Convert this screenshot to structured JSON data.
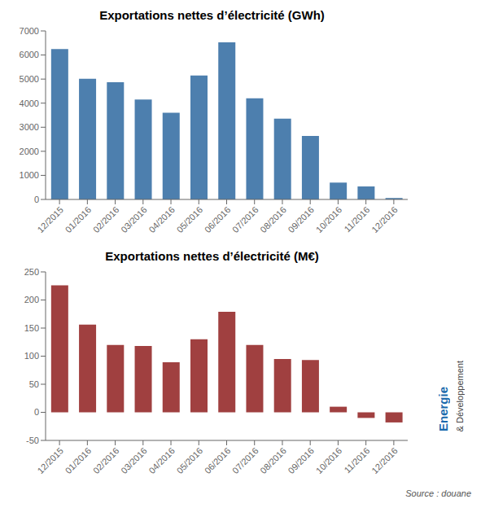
{
  "chart_data": [
    {
      "type": "bar",
      "title": "Exportations nettes d’électricité (GWh)",
      "categories": [
        "12/2015",
        "01/2016",
        "02/2016",
        "03/2016",
        "04/2016",
        "05/2016",
        "06/2016",
        "07/2016",
        "08/2016",
        "09/2016",
        "10/2016",
        "11/2016",
        "12/2016"
      ],
      "values": [
        6250,
        5010,
        4870,
        4150,
        3600,
        5150,
        6530,
        4200,
        3360,
        2640,
        700,
        540,
        60
      ],
      "color": "#4d7fae",
      "ylim": [
        0,
        7000
      ],
      "yticks": [
        0,
        1000,
        2000,
        3000,
        4000,
        5000,
        6000,
        7000
      ],
      "grid": false
    },
    {
      "type": "bar",
      "title": "Exportations nettes d’électricité (M€)",
      "categories": [
        "12/2015",
        "01/2016",
        "02/2016",
        "03/2016",
        "04/2016",
        "05/2016",
        "06/2016",
        "07/2016",
        "08/2016",
        "09/2016",
        "10/2016",
        "11/2016",
        "12/2016"
      ],
      "values": [
        226,
        156,
        120,
        118,
        89,
        130,
        179,
        120,
        95,
        93,
        10,
        -10,
        -18
      ],
      "color": "#a04040",
      "ylim": [
        -50,
        250
      ],
      "yticks": [
        -50,
        0,
        50,
        100,
        150,
        200,
        250
      ],
      "grid": false,
      "annotations": [
        "Source : douane",
        "Energie",
        "& Développement"
      ]
    }
  ]
}
